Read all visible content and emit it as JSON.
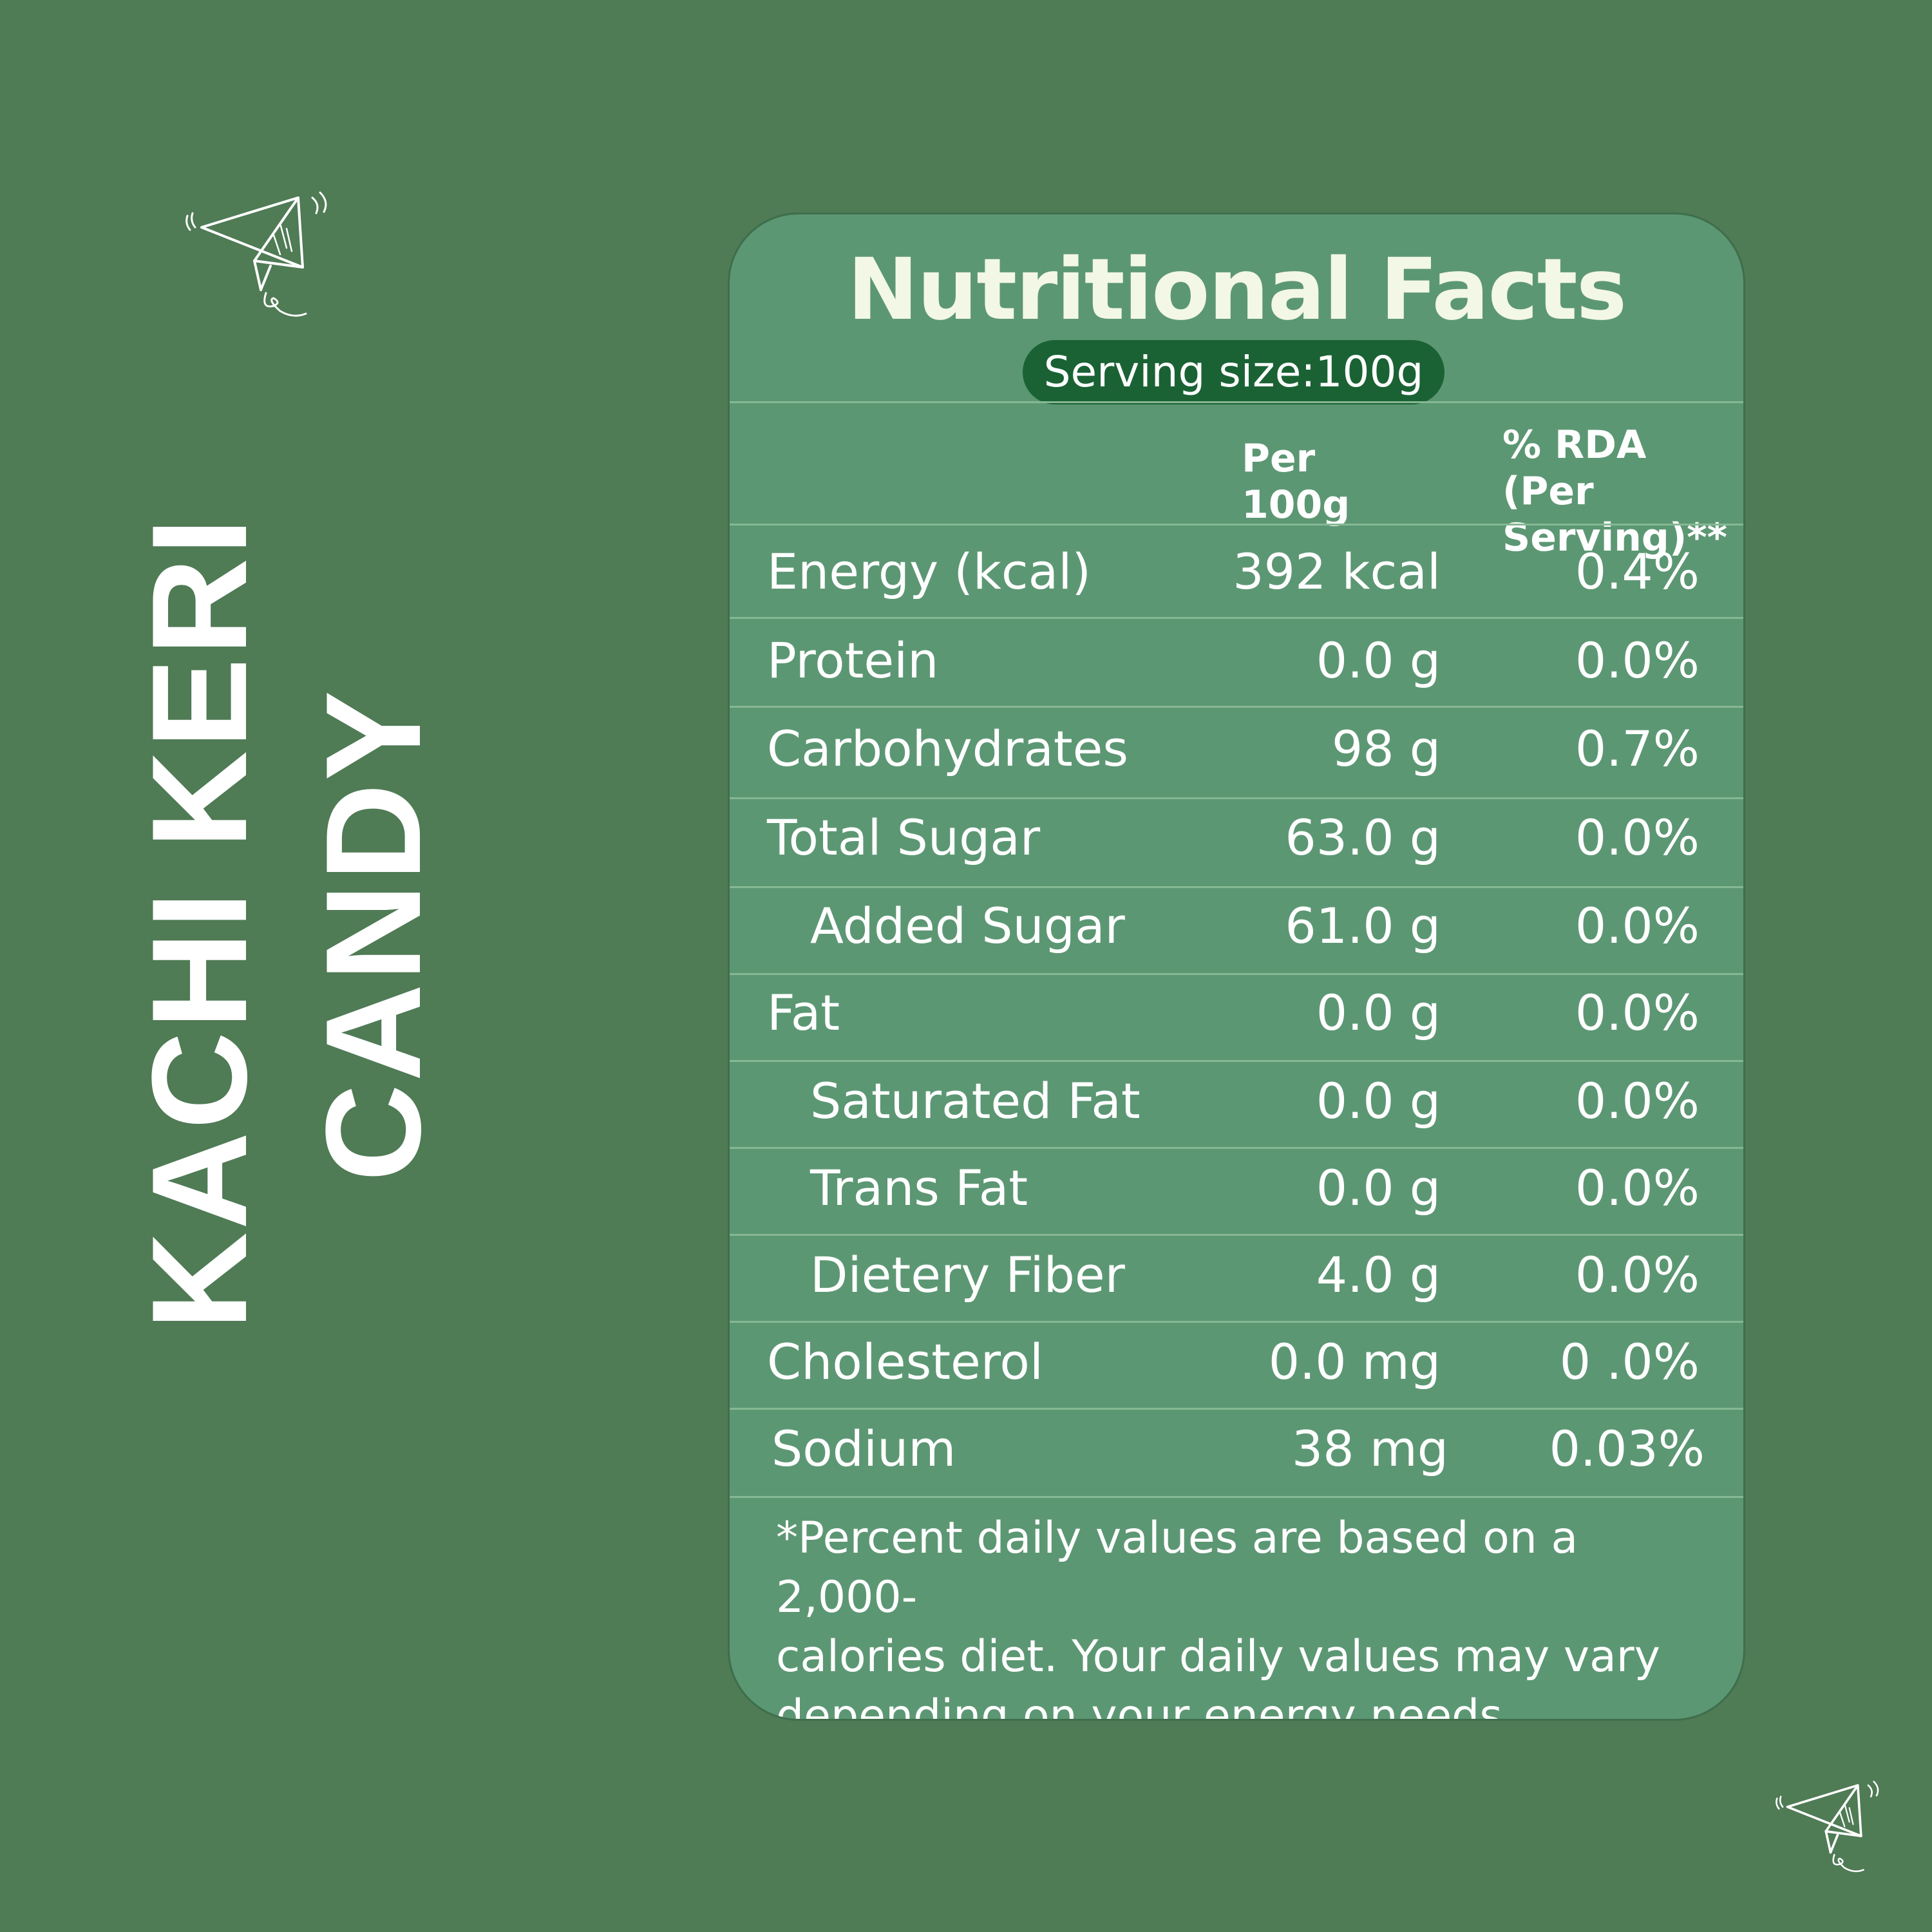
{
  "product": {
    "line1": "KACHI KERI",
    "line2": "CANDY"
  },
  "decor": {
    "top_icon": "paper-plane-icon",
    "bottom_icon": "paper-plane-icon"
  },
  "colors": {
    "background": "#4f7b55",
    "panel": "#5c9773",
    "pill": "#1a6234",
    "title": "#f3f7e5"
  },
  "nutrition": {
    "title": "Nutritional Facts",
    "serving_size": "Serving size:100g",
    "headers": {
      "per_100g": "Per 100g",
      "rda_line1": "% RDA (Per",
      "rda_line2": "Serving)**"
    },
    "rows": [
      {
        "name": "Energy (kcal)",
        "value": "392 kcal",
        "rda": "0.4%"
      },
      {
        "name": "Protein",
        "value": "0.0 g",
        "rda": "0.0%"
      },
      {
        "name": "Carbohydrates",
        "value": "98 g",
        "rda": "0.7%"
      },
      {
        "name": "Total Sugar",
        "value": "63.0 g",
        "rda": "0.0%"
      },
      {
        "name": "Added Sugar",
        "value": "61.0 g",
        "rda": "0.0%"
      },
      {
        "name": "Fat",
        "value": "0.0 g",
        "rda": "0.0%"
      },
      {
        "name": "Saturated Fat",
        "value": "0.0 g",
        "rda": "0.0%"
      },
      {
        "name": "Trans Fat",
        "value": "0.0 g",
        "rda": "0.0%"
      },
      {
        "name": "Dietery Fiber",
        "value": "4.0 g",
        "rda": "0.0%"
      },
      {
        "name": "Cholesterol",
        "value": "0.0 mg",
        "rda": "0 .0%"
      },
      {
        "name": "Sodium",
        "value": "38 mg",
        "rda": "0.03%"
      }
    ],
    "footnote_lines": [
      "*Percent daily values are based on a 2,000-",
      "calories diet. Your daily values may vary",
      "depending on your energy needs."
    ]
  }
}
